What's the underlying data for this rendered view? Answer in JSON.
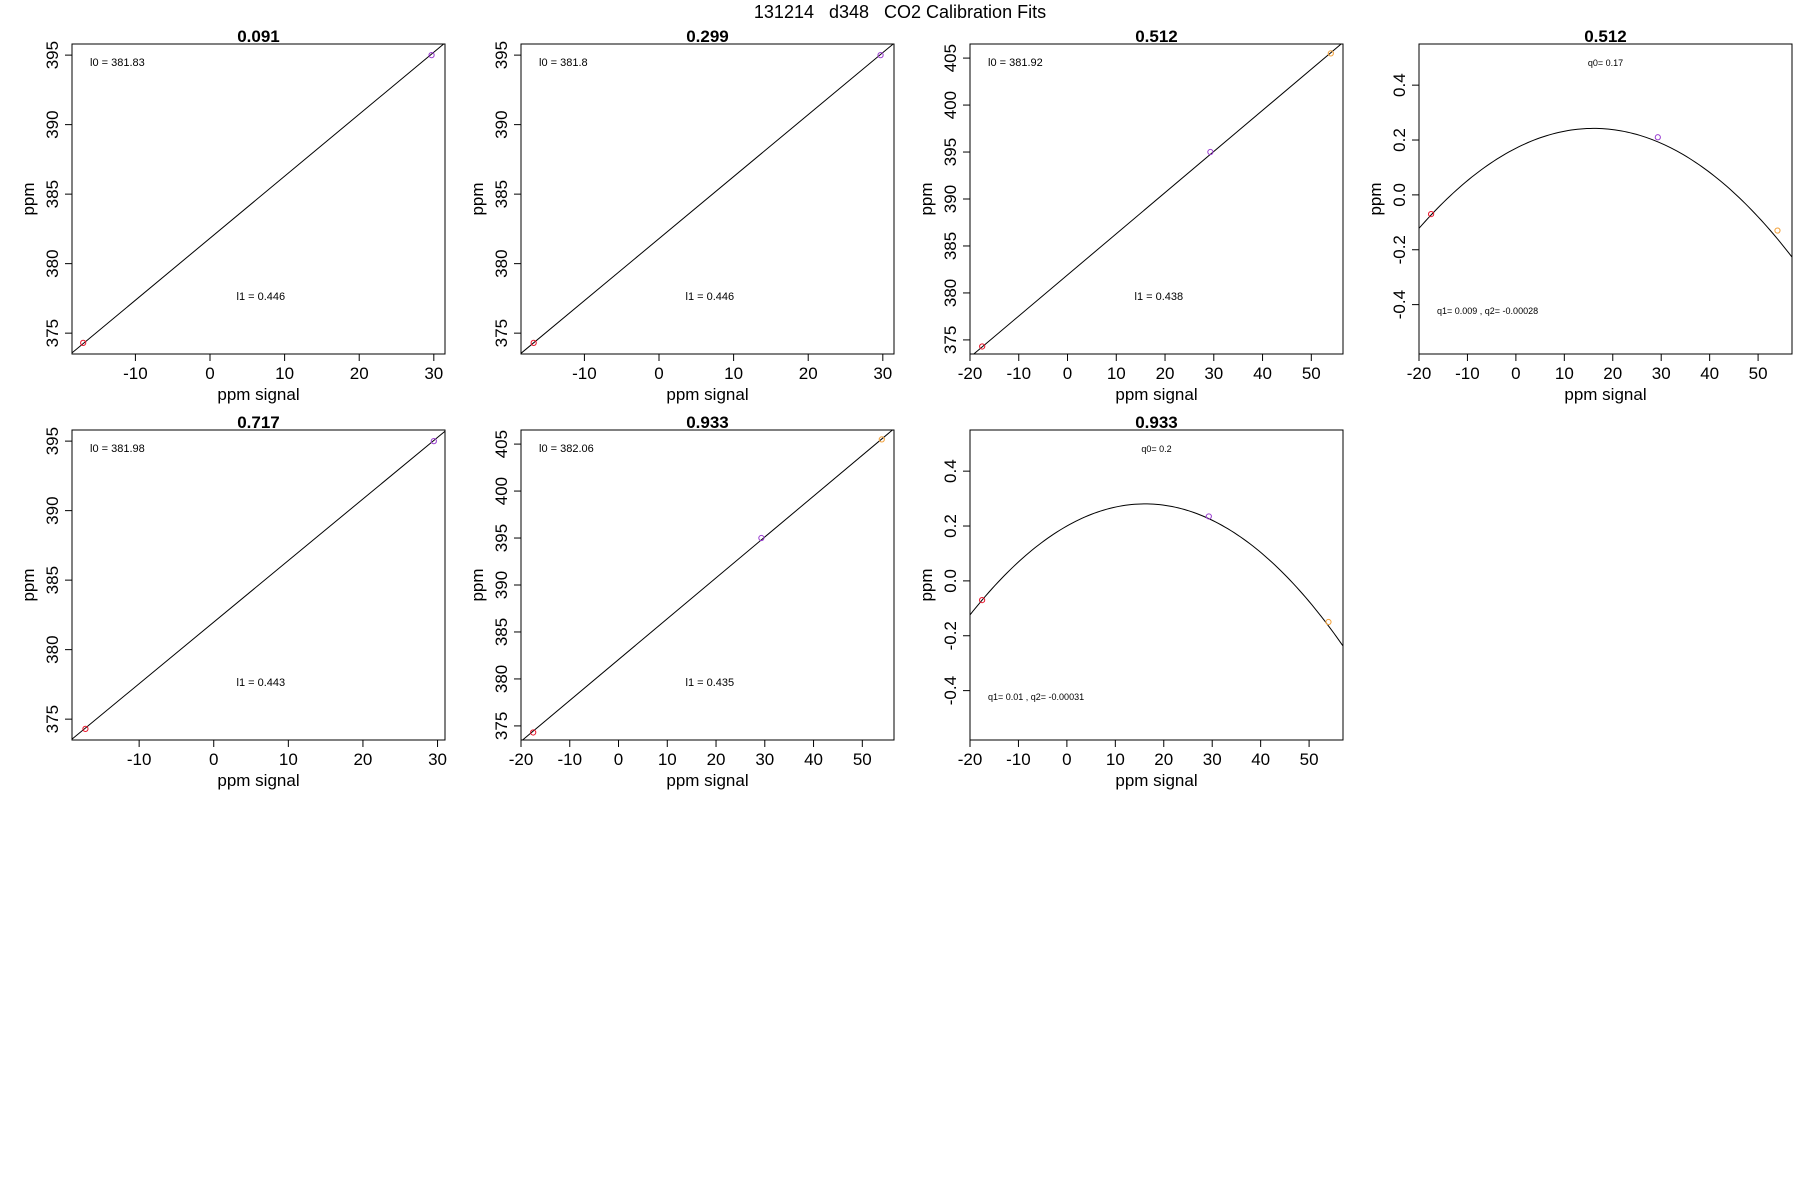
{
  "page": {
    "title": "131214   d348   CO2 Calibration Fits"
  },
  "colors": {
    "point_low": "#e8152b",
    "point_mid": "#9b3fd1",
    "point_high": "#f2a13a"
  },
  "chart_data": [
    {
      "type": "scatter",
      "title": "0.091",
      "xlabel": "ppm signal",
      "ylabel": "ppm",
      "xlim": [
        -18.5,
        31.5
      ],
      "ylim": [
        373.5,
        395.8
      ],
      "xticks": [
        -10,
        0,
        10,
        20,
        30
      ],
      "yticks": [
        375,
        380,
        385,
        390,
        395
      ],
      "fit": "linear",
      "points": [
        {
          "x": -17,
          "y": 374.3,
          "color": "#e8152b"
        },
        {
          "x": 29.7,
          "y": 395.0,
          "color": "#9b3fd1"
        }
      ],
      "line": {
        "intercept": 381.83,
        "slope": 0.446
      },
      "annotations": {
        "top": "l0 =  381.83",
        "bottom": "l1 =  0.446"
      }
    },
    {
      "type": "scatter",
      "title": "0.299",
      "xlabel": "ppm signal",
      "ylabel": "ppm",
      "xlim": [
        -18.5,
        31.5
      ],
      "ylim": [
        373.5,
        395.8
      ],
      "xticks": [
        -10,
        0,
        10,
        20,
        30
      ],
      "yticks": [
        375,
        380,
        385,
        390,
        395
      ],
      "fit": "linear",
      "points": [
        {
          "x": -16.8,
          "y": 374.3,
          "color": "#e8152b"
        },
        {
          "x": 29.7,
          "y": 395.0,
          "color": "#9b3fd1"
        }
      ],
      "line": {
        "intercept": 381.8,
        "slope": 0.446
      },
      "annotations": {
        "top": "l0 =  381.8",
        "bottom": "l1 =  0.446"
      }
    },
    {
      "type": "scatter",
      "title": "0.512",
      "xlabel": "ppm signal",
      "ylabel": "ppm",
      "xlim": [
        -20,
        56.5
      ],
      "ylim": [
        373.5,
        406.5
      ],
      "xticks": [
        -20,
        -10,
        0,
        10,
        20,
        30,
        40,
        50
      ],
      "yticks": [
        375,
        380,
        385,
        390,
        395,
        400,
        405
      ],
      "fit": "linear",
      "points": [
        {
          "x": -17.5,
          "y": 374.3,
          "color": "#e8152b"
        },
        {
          "x": 29.3,
          "y": 395.0,
          "color": "#9b3fd1"
        },
        {
          "x": 54,
          "y": 405.5,
          "color": "#f2a13a"
        }
      ],
      "line": {
        "intercept": 381.92,
        "slope": 0.438
      },
      "annotations": {
        "top": "l0 =  381.92",
        "bottom": "l1 =  0.438"
      }
    },
    {
      "type": "scatter",
      "title": "0.512",
      "xlabel": "ppm signal",
      "ylabel": "ppm",
      "xlim": [
        -20,
        57
      ],
      "ylim": [
        -0.58,
        0.55
      ],
      "xticks": [
        -20,
        -10,
        0,
        10,
        20,
        30,
        40,
        50
      ],
      "yticks": [
        -0.4,
        -0.2,
        0.0,
        0.2,
        0.4
      ],
      "yticklabels": [
        "-0.4",
        "-0.2",
        "0.0",
        "0.2",
        "0.4"
      ],
      "fit": "quadratic",
      "points": [
        {
          "x": -17.5,
          "y": -0.07,
          "color": "#e8152b"
        },
        {
          "x": 29.3,
          "y": 0.21,
          "color": "#9b3fd1"
        },
        {
          "x": 54,
          "y": -0.13,
          "color": "#f2a13a"
        }
      ],
      "curve": {
        "q0": 0.17,
        "q1": 0.009,
        "q2": -0.00028
      },
      "annotations": {
        "top": "q0= 0.17",
        "bottom": "q1= 0.009 , q2= -0.00028"
      }
    },
    {
      "type": "scatter",
      "title": "0.717",
      "xlabel": "ppm signal",
      "ylabel": "ppm",
      "xlim": [
        -19,
        31
      ],
      "ylim": [
        373.5,
        395.8
      ],
      "xticks": [
        -10,
        0,
        10,
        20,
        30
      ],
      "yticks": [
        375,
        380,
        385,
        390,
        395
      ],
      "fit": "linear",
      "points": [
        {
          "x": -17.2,
          "y": 374.3,
          "color": "#e8152b"
        },
        {
          "x": 29.5,
          "y": 395.0,
          "color": "#9b3fd1"
        }
      ],
      "line": {
        "intercept": 381.98,
        "slope": 0.443
      },
      "annotations": {
        "top": "l0 =  381.98",
        "bottom": "l1 =  0.443"
      }
    },
    {
      "type": "scatter",
      "title": "0.933",
      "xlabel": "ppm signal",
      "ylabel": "ppm",
      "xlim": [
        -20,
        56.5
      ],
      "ylim": [
        373.5,
        406.5
      ],
      "xticks": [
        -20,
        -10,
        0,
        10,
        20,
        30,
        40,
        50
      ],
      "yticks": [
        375,
        380,
        385,
        390,
        395,
        400,
        405
      ],
      "fit": "linear",
      "points": [
        {
          "x": -17.5,
          "y": 374.3,
          "color": "#e8152b"
        },
        {
          "x": 29.3,
          "y": 395.0,
          "color": "#9b3fd1"
        },
        {
          "x": 54,
          "y": 405.5,
          "color": "#f2a13a"
        }
      ],
      "line": {
        "intercept": 382.06,
        "slope": 0.435
      },
      "annotations": {
        "top": "l0 =  382.06",
        "bottom": "l1 =  0.435"
      }
    },
    {
      "type": "scatter",
      "title": "0.933",
      "xlabel": "ppm signal",
      "ylabel": "ppm",
      "xlim": [
        -20,
        57
      ],
      "ylim": [
        -0.58,
        0.55
      ],
      "xticks": [
        -20,
        -10,
        0,
        10,
        20,
        30,
        40,
        50
      ],
      "yticks": [
        -0.4,
        -0.2,
        0.0,
        0.2,
        0.4
      ],
      "yticklabels": [
        "-0.4",
        "-0.2",
        "0.0",
        "0.2",
        "0.4"
      ],
      "fit": "quadratic",
      "points": [
        {
          "x": -17.5,
          "y": -0.07,
          "color": "#e8152b"
        },
        {
          "x": 29.3,
          "y": 0.235,
          "color": "#9b3fd1"
        },
        {
          "x": 54,
          "y": -0.15,
          "color": "#f2a13a"
        }
      ],
      "curve": {
        "q0": 0.2,
        "q1": 0.01,
        "q2": -0.00031
      },
      "annotations": {
        "top": "q0= 0.2",
        "bottom": "q1= 0.01 , q2= -0.00031"
      }
    }
  ]
}
